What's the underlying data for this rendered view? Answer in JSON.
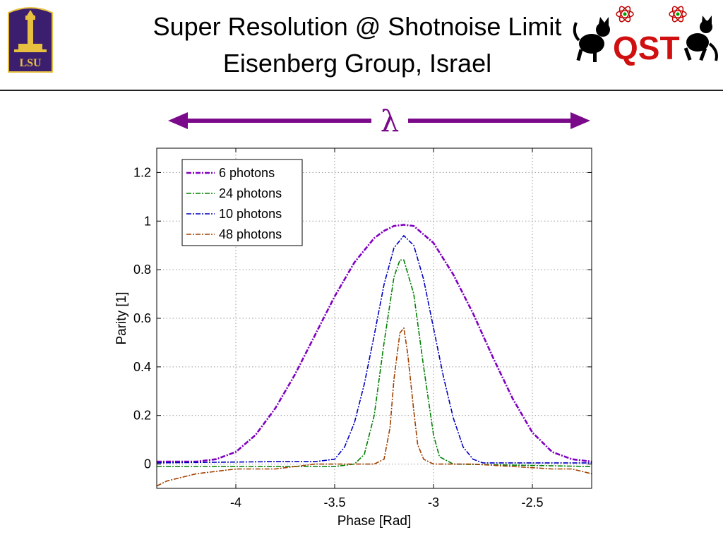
{
  "slide": {
    "title_line1": "Super Resolution @ Shotnoise Limit",
    "title_line2": "Eisenberg Group, Israel",
    "lsu_logo_text": "LSU",
    "qst_logo_text": "QST",
    "wavelength_symbol": "λ"
  },
  "colors": {
    "purple": "#8000c0",
    "green": "#008000",
    "blue": "#0000c0",
    "brown": "#a04000",
    "lsu_purple": "#3b1f6e",
    "lsu_gold": "#e8c040",
    "arrow": "#7a0a8a"
  },
  "chart_data": {
    "type": "line",
    "xlabel": "Phase [Rad]",
    "ylabel": "Parity [1]",
    "xlim": [
      -4.4,
      -2.2
    ],
    "ylim": [
      -0.1,
      1.3
    ],
    "xticks": [
      -4,
      -3.5,
      -3,
      -2.5
    ],
    "yticks": [
      0,
      0.2,
      0.4,
      0.6,
      0.8,
      1,
      1.2
    ],
    "grid": true,
    "legend_position": "top-left",
    "series": [
      {
        "name": "6 photons",
        "color": "#8000c0",
        "x": [
          -4.4,
          -4.2,
          -4.1,
          -4.0,
          -3.9,
          -3.8,
          -3.7,
          -3.6,
          -3.5,
          -3.4,
          -3.3,
          -3.25,
          -3.2,
          -3.15,
          -3.1,
          -3.0,
          -2.9,
          -2.8,
          -2.7,
          -2.6,
          -2.5,
          -2.4,
          -2.3,
          -2.2
        ],
        "y": [
          0.01,
          0.01,
          0.02,
          0.05,
          0.12,
          0.23,
          0.37,
          0.53,
          0.69,
          0.83,
          0.93,
          0.96,
          0.98,
          0.985,
          0.98,
          0.91,
          0.78,
          0.62,
          0.44,
          0.27,
          0.13,
          0.05,
          0.02,
          0.01
        ]
      },
      {
        "name": "24 photons",
        "color": "#008000",
        "x": [
          -4.4,
          -3.5,
          -3.4,
          -3.35,
          -3.3,
          -3.25,
          -3.2,
          -3.17,
          -3.15,
          -3.1,
          -3.05,
          -3.0,
          -2.97,
          -2.9,
          -2.2
        ],
        "y": [
          -0.01,
          -0.01,
          0.0,
          0.04,
          0.2,
          0.5,
          0.77,
          0.84,
          0.84,
          0.7,
          0.4,
          0.12,
          0.03,
          0.0,
          -0.01
        ]
      },
      {
        "name": "10 photons",
        "color": "#0000c0",
        "x": [
          -4.4,
          -3.8,
          -3.6,
          -3.5,
          -3.45,
          -3.4,
          -3.35,
          -3.3,
          -3.25,
          -3.2,
          -3.15,
          -3.1,
          -3.05,
          -3.0,
          -2.95,
          -2.9,
          -2.85,
          -2.8,
          -2.75,
          -2.7,
          -2.2
        ],
        "y": [
          0.005,
          0.01,
          0.01,
          0.02,
          0.07,
          0.17,
          0.33,
          0.53,
          0.74,
          0.89,
          0.94,
          0.9,
          0.76,
          0.56,
          0.36,
          0.19,
          0.07,
          0.02,
          0.005,
          0.005,
          0.005
        ]
      },
      {
        "name": "48 photons",
        "color": "#a04000",
        "x": [
          -4.4,
          -4.35,
          -4.3,
          -4.2,
          -4.1,
          -4.0,
          -3.8,
          -3.6,
          -3.4,
          -3.3,
          -3.25,
          -3.22,
          -3.2,
          -3.17,
          -3.15,
          -3.13,
          -3.1,
          -3.08,
          -3.05,
          -3.0,
          -2.9,
          -2.8,
          -2.6,
          -2.4,
          -2.3,
          -2.2
        ],
        "y": [
          -0.09,
          -0.07,
          -0.06,
          -0.04,
          -0.03,
          -0.02,
          -0.02,
          0.0,
          0.0,
          0.0,
          0.02,
          0.15,
          0.35,
          0.54,
          0.56,
          0.45,
          0.22,
          0.08,
          0.02,
          0.0,
          0.0,
          0.0,
          -0.01,
          -0.02,
          -0.02,
          -0.04
        ]
      }
    ]
  }
}
